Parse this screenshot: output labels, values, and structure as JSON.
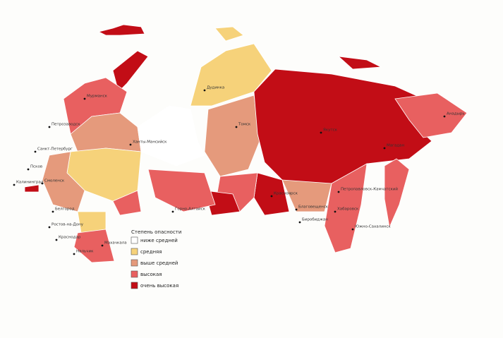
{
  "legend": {
    "title": "Степень опасности",
    "items": [
      {
        "label": "ниже средней",
        "color": "#ffffff"
      },
      {
        "label": "средняя",
        "color": "#f6d27a"
      },
      {
        "label": "выше средней",
        "color": "#e59a7c"
      },
      {
        "label": "высокая",
        "color": "#e86060"
      },
      {
        "label": "очень высокая",
        "color": "#c20d16"
      }
    ]
  },
  "cities": [
    {
      "label": "Мурманск"
    },
    {
      "label": "Петрозаводск"
    },
    {
      "label": "Санкт-Петербург"
    },
    {
      "label": "Псков"
    },
    {
      "label": "Смоленск"
    },
    {
      "label": "Калининград"
    },
    {
      "label": "Белгород"
    },
    {
      "label": "Ростов-на-Дону"
    },
    {
      "label": "Краснодар"
    },
    {
      "label": "Нальчик"
    },
    {
      "label": "Махачкала"
    },
    {
      "label": "Ханты-Мансийск"
    },
    {
      "label": "Томск"
    },
    {
      "label": "Дудинка"
    },
    {
      "label": "Якутск"
    },
    {
      "label": "Красноярск"
    },
    {
      "label": "Горно-Алтайск"
    },
    {
      "label": "Благовещенск"
    },
    {
      "label": "Биробиджан"
    },
    {
      "label": "Хабаровск"
    },
    {
      "label": "Петропавловск-Камчатский"
    },
    {
      "label": "Южно-Сахалинск"
    },
    {
      "label": "Магадан"
    },
    {
      "label": "Анадырь"
    }
  ]
}
